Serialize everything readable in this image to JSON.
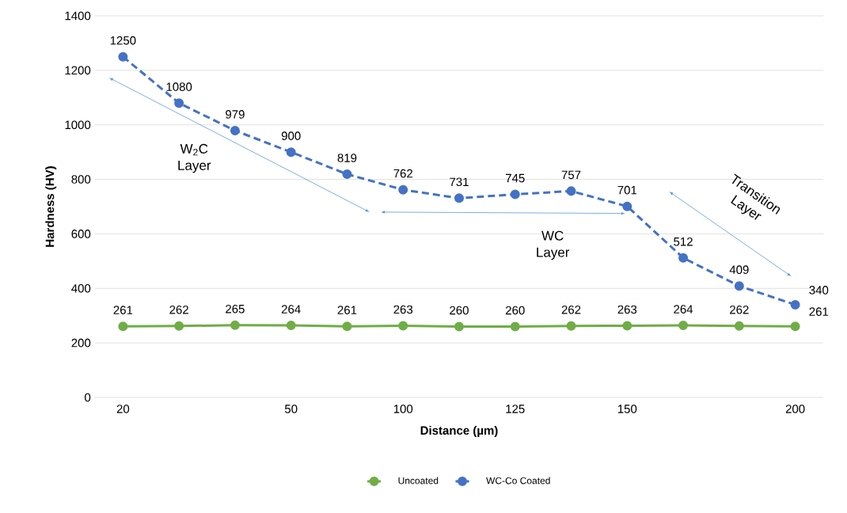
{
  "chart_data": {
    "type": "line",
    "xlabel": "Distance (µm)",
    "ylabel": "Hardness (HV)",
    "categories": [
      "20",
      null,
      null,
      "50",
      null,
      "100",
      null,
      "125",
      null,
      "150",
      null,
      null,
      "200"
    ],
    "series": [
      {
        "name": "Uncoated",
        "color": "#70ad47",
        "line_style": "solid",
        "values": [
          261,
          262,
          265,
          264,
          261,
          263,
          260,
          260,
          262,
          263,
          264,
          262,
          261
        ]
      },
      {
        "name": "WC-Co Coated",
        "color": "#4472c4",
        "line_style": "dashed",
        "values": [
          1250,
          1080,
          979,
          900,
          819,
          762,
          731,
          745,
          757,
          701,
          512,
          409,
          340
        ]
      }
    ],
    "ylim": [
      0,
      1400
    ],
    "yticks": [
      0,
      200,
      400,
      600,
      800,
      1000,
      1200,
      1400
    ],
    "grid": "y",
    "legend": "bottom",
    "marker": "circle",
    "data_labels": true,
    "annotations": [
      "W$_{2}$C Layer",
      "WC Layer",
      "Transition Layer"
    ]
  }
}
